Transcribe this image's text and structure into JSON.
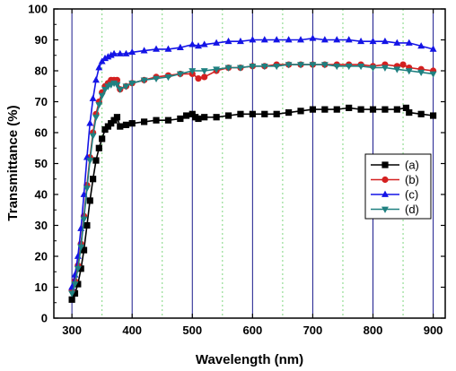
{
  "chart_data": {
    "type": "line",
    "title": "",
    "xlabel": "Wavelength (nm)",
    "ylabel": "Transmittance (%)",
    "xlim": [
      270,
      920
    ],
    "ylim": [
      0,
      100
    ],
    "x_ticks": [
      300,
      400,
      500,
      600,
      700,
      800,
      900
    ],
    "x_tick_labels": [
      "300",
      "400",
      "500",
      "600",
      "700",
      "800",
      "900"
    ],
    "y_ticks": [
      0,
      10,
      20,
      30,
      40,
      50,
      60,
      70,
      80,
      90,
      100
    ],
    "y_tick_labels": [
      "0",
      "10",
      "20",
      "30",
      "40",
      "50",
      "60",
      "70",
      "80",
      "90",
      "100"
    ],
    "grid": {
      "major_vertical": [
        300,
        400,
        500,
        600,
        700,
        800,
        900
      ],
      "minor_vertical": [
        350,
        450,
        550,
        650,
        750,
        850
      ],
      "major_color": "#1a1a8c",
      "minor_color": "#7fd67f"
    },
    "legend_position": "right",
    "series": [
      {
        "name": "(a)",
        "color": "#000000",
        "marker": "square",
        "x": [
          300,
          305,
          310,
          315,
          320,
          325,
          330,
          335,
          340,
          345,
          350,
          355,
          360,
          365,
          370,
          375,
          380,
          390,
          400,
          420,
          440,
          460,
          480,
          490,
          500,
          505,
          510,
          520,
          540,
          560,
          580,
          600,
          620,
          640,
          660,
          680,
          700,
          720,
          740,
          760,
          780,
          800,
          820,
          840,
          855,
          860,
          880,
          900
        ],
        "y": [
          6,
          8,
          11,
          16,
          22,
          30,
          38,
          45,
          51,
          55,
          58,
          61,
          62,
          63,
          64,
          65,
          62,
          62.5,
          63,
          63.5,
          64,
          64,
          64.5,
          65.5,
          66,
          65,
          64.5,
          65,
          65,
          65.5,
          66,
          66,
          66,
          66,
          66.5,
          67,
          67.5,
          67.5,
          67.5,
          68,
          67.5,
          67.5,
          67.5,
          67.5,
          68,
          66.5,
          66,
          65.5
        ]
      },
      {
        "name": "(b)",
        "color": "#d42020",
        "marker": "circle",
        "x": [
          300,
          305,
          310,
          315,
          320,
          325,
          330,
          335,
          340,
          345,
          350,
          355,
          360,
          365,
          370,
          375,
          380,
          390,
          400,
          420,
          440,
          460,
          480,
          500,
          510,
          520,
          540,
          560,
          580,
          600,
          620,
          640,
          660,
          680,
          700,
          720,
          740,
          760,
          780,
          800,
          820,
          840,
          850,
          860,
          880,
          900
        ],
        "y": [
          9,
          12,
          17,
          24,
          33,
          43,
          52,
          60,
          66,
          70,
          73,
          75,
          76,
          77,
          77,
          77,
          74,
          75,
          76,
          77,
          78,
          78.5,
          79,
          79,
          77.5,
          78,
          80,
          81,
          81,
          81.5,
          81.5,
          82,
          82,
          82,
          82,
          82,
          82,
          82,
          82,
          81.5,
          82,
          81.5,
          82,
          81,
          80.5,
          80
        ]
      },
      {
        "name": "(c)",
        "color": "#1414e6",
        "marker": "triangle-up",
        "x": [
          300,
          305,
          310,
          315,
          320,
          325,
          330,
          335,
          340,
          345,
          350,
          355,
          360,
          365,
          370,
          380,
          390,
          400,
          420,
          440,
          460,
          480,
          500,
          510,
          520,
          540,
          560,
          580,
          600,
          620,
          640,
          660,
          680,
          700,
          720,
          740,
          760,
          780,
          800,
          820,
          840,
          860,
          880,
          900
        ],
        "y": [
          10,
          14,
          20,
          29,
          40,
          52,
          63,
          71,
          77,
          81,
          83,
          84,
          84.5,
          85,
          85.5,
          85.5,
          85.5,
          86,
          86.5,
          87,
          87,
          87.5,
          88.5,
          88,
          88.5,
          89,
          89.5,
          89.5,
          90,
          90,
          90,
          90,
          90,
          90.5,
          90,
          90,
          90,
          89.5,
          89.5,
          89.5,
          89,
          89,
          88,
          87
        ]
      },
      {
        "name": "(d)",
        "color": "#1f8080",
        "marker": "triangle-down",
        "x": [
          300,
          305,
          310,
          315,
          320,
          325,
          330,
          335,
          340,
          345,
          350,
          355,
          360,
          365,
          370,
          375,
          380,
          390,
          400,
          420,
          440,
          460,
          480,
          500,
          520,
          540,
          560,
          580,
          600,
          620,
          640,
          660,
          680,
          700,
          720,
          740,
          760,
          780,
          800,
          820,
          840,
          860,
          880,
          900
        ],
        "y": [
          8,
          11,
          16,
          23,
          32,
          42,
          51,
          59,
          65,
          69,
          72,
          74,
          75,
          75.5,
          76,
          75.5,
          74,
          75,
          76,
          77,
          77.5,
          78,
          79,
          80,
          80,
          80.5,
          81,
          81,
          81.5,
          81.5,
          81.5,
          82,
          82,
          82,
          82,
          81.5,
          81.5,
          81.5,
          81,
          81,
          80.5,
          80,
          79.5,
          79
        ]
      }
    ]
  }
}
